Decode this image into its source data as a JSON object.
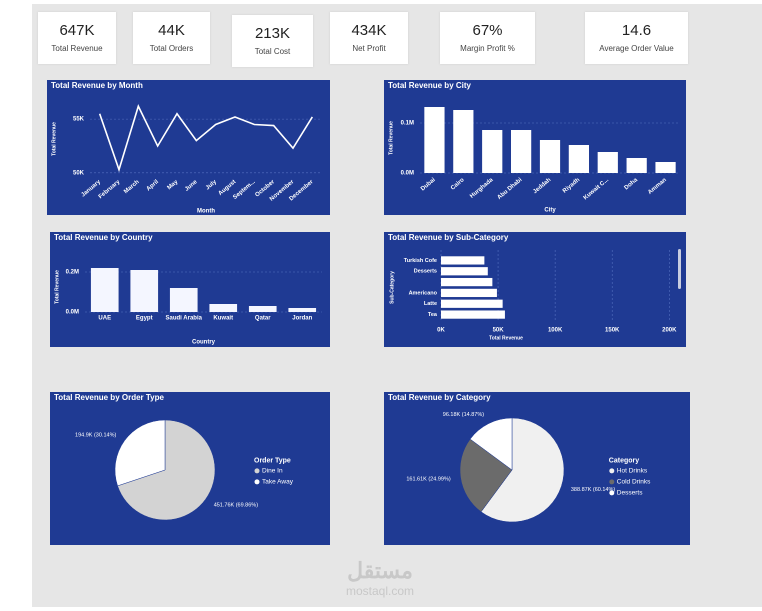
{
  "kpis": [
    {
      "value": "647K",
      "label": "Total Revenue"
    },
    {
      "value": "44K",
      "label": "Total Orders"
    },
    {
      "value": "213K",
      "label": "Total Cost"
    },
    {
      "value": "434K",
      "label": "Net Profit"
    },
    {
      "value": "67%",
      "label": "Margin Profit %"
    },
    {
      "value": "14.6",
      "label": "Average Order Value"
    }
  ],
  "chart_data": [
    {
      "type": "line",
      "title": "Total Revenue by Month",
      "x_label": "Month",
      "y_label": "Total Revenue",
      "color": "#ffffff",
      "grid": true,
      "categories": [
        "January",
        "February",
        "March",
        "April",
        "May",
        "June",
        "July",
        "August",
        "Septem...",
        "October",
        "November",
        "December"
      ],
      "values": [
        55500,
        50300,
        56200,
        52500,
        55500,
        53000,
        54500,
        55200,
        54500,
        54400,
        52300,
        55200
      ],
      "ylim": [
        49800,
        56500
      ],
      "yticks": [
        {
          "value": 50000,
          "label": "50K"
        },
        {
          "value": 55000,
          "label": "55K"
        }
      ]
    },
    {
      "type": "bar",
      "title": "Total Revenue by City",
      "x_label": "City",
      "y_label": "Total Revenue",
      "color": "#ffffff",
      "grid": true,
      "categories": [
        "Dubai",
        "Cairo",
        "Hurghada",
        "Abu Dhabi",
        "Jeddah",
        "Riyadh",
        "Kuwait C...",
        "Doha",
        "Amman"
      ],
      "values": [
        132000,
        126000,
        86000,
        86000,
        66000,
        56000,
        42000,
        30000,
        22000
      ],
      "ylim": [
        0,
        140000
      ],
      "yticks": [
        {
          "value": 0,
          "label": "0.0M"
        },
        {
          "value": 100000,
          "label": "0.1M"
        }
      ]
    },
    {
      "type": "bar",
      "title": "Total Revenue by Country",
      "x_label": "Country",
      "y_label": "Total Revenue",
      "color": "#f4f6ff",
      "grid": true,
      "categories": [
        "UAE",
        "Egypt",
        "Saudi Arabia",
        "Kuwait",
        "Qatar",
        "Jordan"
      ],
      "values": [
        220000,
        210000,
        120000,
        40000,
        30000,
        20000
      ],
      "ylim": [
        0,
        250000
      ],
      "yticks": [
        {
          "value": 0,
          "label": "0.0M"
        },
        {
          "value": 200000,
          "label": "0.2M"
        }
      ]
    },
    {
      "type": "bar",
      "orientation": "horizontal",
      "title": "Total Revenue by Sub-Category",
      "x_label": "Total Revenue",
      "y_label": "Sub-Category",
      "color": "#ffffff",
      "grid": true,
      "categories": [
        "Turkish Cofe",
        "Desserts",
        null,
        "Americano",
        "Latte",
        "Tea"
      ],
      "values": [
        38000,
        41000,
        45000,
        49000,
        54000,
        56000
      ],
      "xlim": [
        0,
        205000
      ],
      "xticks": [
        {
          "value": 0,
          "label": "0K"
        },
        {
          "value": 50000,
          "label": "50K"
        },
        {
          "value": 100000,
          "label": "100K"
        },
        {
          "value": 150000,
          "label": "150K"
        },
        {
          "value": 200000,
          "label": "200K"
        }
      ]
    },
    {
      "type": "pie",
      "title": "Total Revenue by Order Type",
      "legend_title": "Order Type",
      "categories": [
        "Dine In",
        "Take Away"
      ],
      "values": [
        451760,
        194900
      ],
      "value_labels": [
        "451.76K (69.86%)",
        "194.9K (30.14%)"
      ],
      "colors": [
        "#d3d3d3",
        "#ffffff"
      ]
    },
    {
      "type": "pie",
      "title": "Total Revenue by Category",
      "legend_title": "Category",
      "categories": [
        "Hot Drinks",
        "Cold Drinks",
        "Desserts"
      ],
      "values": [
        388870,
        161610,
        96180
      ],
      "value_labels": [
        "388.87K (60.14%)",
        "161.61K (24.99%)",
        "96.18K (14.87%)"
      ],
      "colors": [
        "#f0f0f0",
        "#6b6b6b",
        "#ffffff"
      ]
    }
  ],
  "watermark": {
    "arabic": "مستقل",
    "latin": "mostaql.com"
  }
}
